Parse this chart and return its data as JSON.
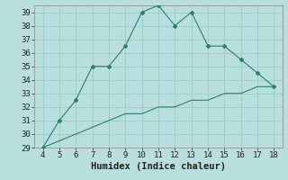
{
  "x": [
    4,
    5,
    6,
    7,
    8,
    9,
    10,
    11,
    12,
    13,
    14,
    15,
    16,
    17,
    18
  ],
  "y_main": [
    29,
    31,
    32.5,
    35,
    35,
    36.5,
    39,
    39.5,
    38,
    39,
    36.5,
    36.5,
    35.5,
    34.5,
    33.5
  ],
  "y_line": [
    29,
    29.5,
    30,
    30.5,
    31,
    31.5,
    31.5,
    32,
    32,
    32.5,
    32.5,
    33,
    33,
    33.5,
    33.5
  ],
  "line_color": "#2e7d6e",
  "bg_color": "#b8dede",
  "grid_color": "#99cccc",
  "xlim": [
    3.5,
    18.5
  ],
  "ylim": [
    29,
    39.5
  ],
  "xticks": [
    4,
    5,
    6,
    7,
    8,
    9,
    10,
    11,
    12,
    13,
    14,
    15,
    16,
    17,
    18
  ],
  "yticks": [
    29,
    30,
    31,
    32,
    33,
    34,
    35,
    36,
    37,
    38,
    39
  ],
  "xlabel": "Humidex (Indice chaleur)",
  "xlabel_fontsize": 7.5,
  "tick_fontsize": 6.5
}
